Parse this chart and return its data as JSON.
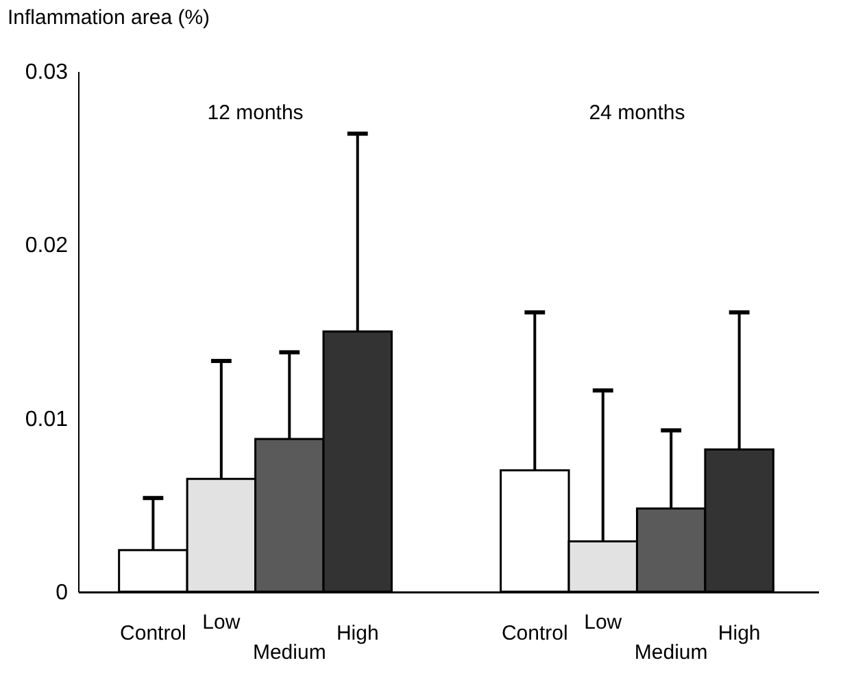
{
  "chart_data": {
    "type": "bar",
    "ylabel": "Inflammation area (%)",
    "categories": [
      "Control",
      "Low",
      "Medium",
      "High",
      "Control",
      "Low",
      "Medium",
      "High"
    ],
    "values": [
      0.0024,
      0.0065,
      0.0088,
      0.015,
      0.007,
      0.0029,
      0.0048,
      0.0082
    ],
    "colors": [
      "#ffffff",
      "#e2e2e2",
      "#5a5a5a",
      "#333333",
      "#ffffff",
      "#e2e2e2",
      "#5a5a5a",
      "#333333"
    ],
    "errors": [
      [
        0.0024,
        0.0054
      ],
      [
        0.0065,
        0.0133
      ],
      [
        0.0088,
        0.0138
      ],
      [
        0.015,
        0.0264
      ],
      [
        0.007,
        0.0161
      ],
      [
        0.0029,
        0.0116
      ],
      [
        0.0048,
        0.0093
      ],
      [
        0.0082,
        0.0161
      ]
    ],
    "annotations": [
      "12 months",
      "24 months"
    ],
    "ylim": [
      0,
      0.03
    ],
    "yticks": [
      0,
      0.01,
      0.02,
      0.03
    ],
    "grid": false,
    "legend": false
  }
}
